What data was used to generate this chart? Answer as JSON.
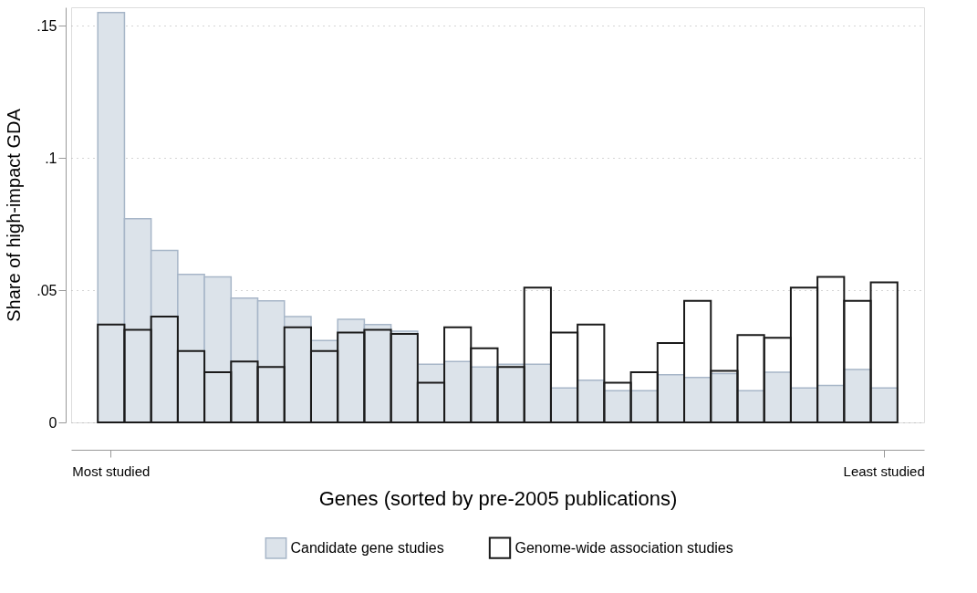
{
  "chart_data": {
    "type": "bar",
    "xlabel": "Genes (sorted by pre-2005 publications)",
    "ylabel": "Share of high-impact GDA",
    "categories": [
      "Most studied",
      null,
      null,
      null,
      null,
      null,
      null,
      null,
      null,
      null,
      null,
      null,
      null,
      null,
      null,
      null,
      null,
      null,
      null,
      null,
      null,
      null,
      null,
      null,
      null,
      null,
      null,
      null,
      null,
      "Least studied"
    ],
    "series": [
      {
        "name": "Candidate gene studies",
        "color": "#dce3ea",
        "values": [
          0.155,
          0.077,
          0.065,
          0.056,
          0.055,
          0.047,
          0.046,
          0.04,
          0.031,
          0.039,
          0.037,
          0.0345,
          0.022,
          0.023,
          0.021,
          0.022,
          0.022,
          0.013,
          0.016,
          0.012,
          0.012,
          0.018,
          0.017,
          0.0185,
          0.012,
          0.019,
          0.013,
          0.014,
          0.02,
          0.013
        ]
      },
      {
        "name": "Genome-wide association studies",
        "color": "#1a1a1a",
        "values": [
          0.037,
          0.035,
          0.04,
          0.027,
          0.019,
          0.023,
          0.021,
          0.036,
          0.027,
          0.034,
          0.035,
          0.0335,
          0.015,
          0.036,
          0.028,
          0.021,
          0.051,
          0.034,
          0.037,
          0.015,
          0.019,
          0.03,
          0.046,
          0.0195,
          0.033,
          0.032,
          0.051,
          0.055,
          0.046,
          0.053
        ]
      }
    ],
    "ylim": [
      0,
      0.157
    ],
    "yticks": [
      {
        "value": 0,
        "label": "0"
      },
      {
        "value": 0.05,
        "label": ".05"
      },
      {
        "value": 0.1,
        "label": ".1"
      },
      {
        "value": 0.15,
        "label": ".15"
      }
    ],
    "grid": "y",
    "legend": "bottom"
  }
}
